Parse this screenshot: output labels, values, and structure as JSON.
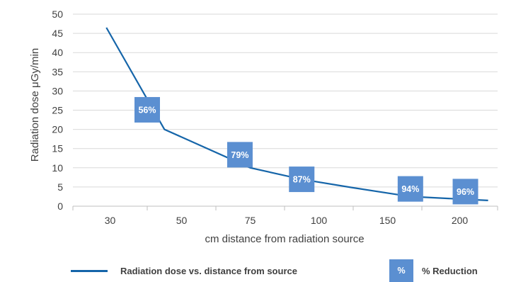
{
  "chart_data": {
    "type": "line",
    "categories": [
      "30",
      "50",
      "75",
      "100",
      "150",
      "200"
    ],
    "series": [
      {
        "name": "Radiation dose vs. distance from source",
        "points": [
          [
            25,
            46.5
          ],
          [
            45,
            20
          ],
          [
            70,
            10
          ],
          [
            90,
            7
          ],
          [
            120,
            4.8
          ],
          [
            170,
            2.5
          ],
          [
            215,
            1.5
          ]
        ]
      }
    ],
    "reductions": [
      {
        "label": "56%",
        "x": 40,
        "y": 25.1
      },
      {
        "label": "79%",
        "x": 67,
        "y": 13.4
      },
      {
        "label": "87%",
        "x": 90,
        "y": 7.0
      },
      {
        "label": "94%",
        "x": 170,
        "y": 4.5
      },
      {
        "label": "96%",
        "x": 203,
        "y": 3.8
      }
    ],
    "ylabel": "Radiation dose μGy/min",
    "xlabel": "cm distance from radiation source",
    "ylim": [
      0,
      50
    ],
    "yticks": [
      0,
      5,
      10,
      15,
      20,
      25,
      30,
      35,
      40,
      45,
      50
    ],
    "grid": true,
    "legend": {
      "line_label": "Radiation dose vs. distance from source",
      "swatch_text": "%",
      "swatch_label": "% Reduction"
    },
    "colors": {
      "line": "#1565a9",
      "reduction_box": "#5b8fd1",
      "grid": "#d9d9d9"
    }
  }
}
